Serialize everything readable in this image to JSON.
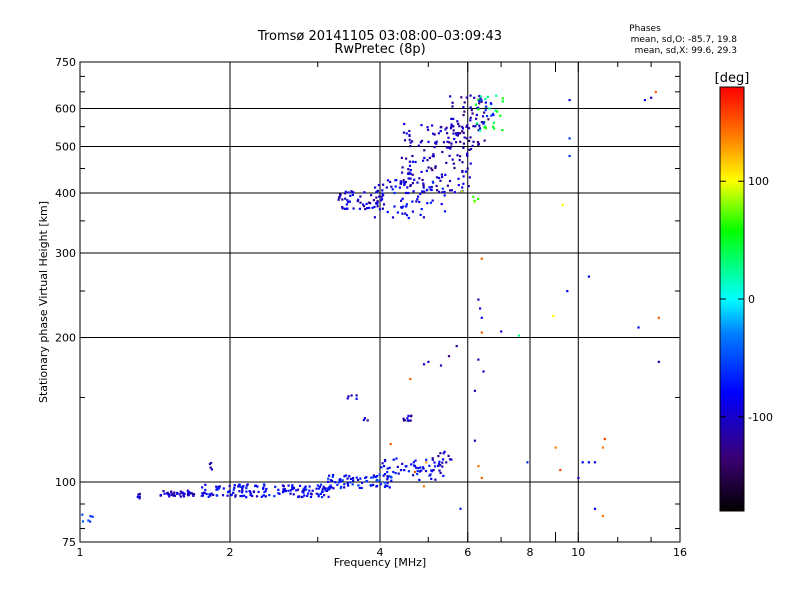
{
  "chart_data": {
    "type": "scatter",
    "title": "Tromsø 20141105 03:08:00–03:09:43",
    "subtitle": "RwPretec (8p)",
    "stats": {
      "header": "Phases",
      "line1": "mean, sd,O: -85.7, 19.8",
      "line2": "mean, sd,X:  99.6, 29.3"
    },
    "xlabel": "Frequency [MHz]",
    "ylabel": "Stationary phase Virtual Height [km]",
    "x_scale": "log",
    "y_scale": "log",
    "xlim": [
      1,
      16
    ],
    "ylim": [
      75,
      750
    ],
    "x_ticks": [
      1,
      2,
      4,
      6,
      8,
      9,
      10,
      16
    ],
    "x_tick_labels": [
      "1",
      "2",
      "4",
      "6",
      "8",
      "",
      "10",
      "16"
    ],
    "x_minor_ticks": [
      3,
      5,
      7,
      12,
      14
    ],
    "x_grid": [
      2,
      4,
      6,
      8,
      10
    ],
    "y_ticks": [
      75,
      100,
      200,
      300,
      400,
      500,
      600,
      750
    ],
    "y_tick_labels": [
      "75",
      "100",
      "200",
      "300",
      "400",
      "500",
      "600",
      "750"
    ],
    "y_grid": [
      100,
      200,
      300,
      400,
      500,
      600
    ],
    "grid": true,
    "colorbar": {
      "label": "[deg]",
      "range": [
        -180,
        180
      ],
      "ticks": [
        100,
        0,
        -100
      ],
      "tick_labels": [
        "100",
        "0",
        "-100"
      ],
      "colors": [
        "#ff0000",
        "#ff8000",
        "#ffff00",
        "#00ff00",
        "#00ffff",
        "#0080ff",
        "#0000ff",
        "#3a0070",
        "#000000"
      ]
    },
    "clusters": [
      {
        "type": "band",
        "x": [
          1.0,
          1.06
        ],
        "y": [
          82,
          86
        ],
        "phase": -60,
        "n": 6
      },
      {
        "type": "band",
        "x": [
          1.3,
          1.32
        ],
        "y": [
          92,
          95
        ],
        "phase": -100,
        "n": 5
      },
      {
        "type": "band",
        "x": [
          1.45,
          1.7
        ],
        "y": [
          93,
          96
        ],
        "phase": -105,
        "n": 40
      },
      {
        "type": "band",
        "x": [
          1.75,
          3.2
        ],
        "y": [
          93,
          99
        ],
        "phase": -85,
        "n": 160
      },
      {
        "type": "band",
        "x": [
          1.82,
          1.84
        ],
        "y": [
          106,
          112
        ],
        "phase": -110,
        "n": 4
      },
      {
        "type": "band",
        "x": [
          3.1,
          4.3
        ],
        "y": [
          97,
          104
        ],
        "phase": -75,
        "n": 70
      },
      {
        "type": "band",
        "x": [
          4.0,
          5.4
        ],
        "y": [
          101,
          112
        ],
        "phase": -85,
        "n": 60
      },
      {
        "type": "band",
        "x": [
          5.1,
          5.6
        ],
        "y": [
          108,
          116
        ],
        "phase": -100,
        "n": 12
      },
      {
        "type": "band",
        "x": [
          3.4,
          3.6
        ],
        "y": [
          148,
          152
        ],
        "phase": -105,
        "n": 5
      },
      {
        "type": "band",
        "x": [
          3.7,
          3.8
        ],
        "y": [
          133,
          137
        ],
        "phase": -110,
        "n": 3
      },
      {
        "type": "band",
        "x": [
          4.45,
          4.65
        ],
        "y": [
          132,
          138
        ],
        "phase": -110,
        "n": 10
      },
      {
        "type": "band",
        "x": [
          3.3,
          4.1
        ],
        "y": [
          370,
          405
        ],
        "phase": -100,
        "n": 60
      },
      {
        "type": "band",
        "x": [
          3.9,
          5.4
        ],
        "y": [
          355,
          430
        ],
        "phase": -85,
        "n": 70
      },
      {
        "type": "band",
        "x": [
          4.4,
          6.1
        ],
        "y": [
          400,
          560
        ],
        "phase": -105,
        "n": 150
      },
      {
        "type": "band",
        "x": [
          5.5,
          6.6
        ],
        "y": [
          500,
          640
        ],
        "phase": -115,
        "n": 60
      },
      {
        "type": "band",
        "x": [
          6.2,
          7.1
        ],
        "y": [
          540,
          640
        ],
        "phase": 40,
        "n": 25
      },
      {
        "type": "band",
        "x": [
          6.3,
          6.8
        ],
        "y": [
          560,
          630
        ],
        "phase": -60,
        "n": 12
      },
      {
        "type": "band",
        "x": [
          5.8,
          6.3
        ],
        "y": [
          380,
          470
        ],
        "phase": 80,
        "n": 5
      }
    ],
    "points": [
      {
        "x": 4.7,
        "y": 105,
        "phase": 150
      },
      {
        "x": 4.9,
        "y": 98,
        "phase": 140
      },
      {
        "x": 6.3,
        "y": 108,
        "phase": 140
      },
      {
        "x": 6.4,
        "y": 102,
        "phase": 150
      },
      {
        "x": 4.95,
        "y": 110,
        "phase": 130
      },
      {
        "x": 6.2,
        "y": 122,
        "phase": -110
      },
      {
        "x": 6.2,
        "y": 155,
        "phase": -110
      },
      {
        "x": 6.3,
        "y": 180,
        "phase": -110
      },
      {
        "x": 5.5,
        "y": 183,
        "phase": -130
      },
      {
        "x": 5.3,
        "y": 175,
        "phase": -110
      },
      {
        "x": 5.7,
        "y": 192,
        "phase": -120
      },
      {
        "x": 6.45,
        "y": 170,
        "phase": -100
      },
      {
        "x": 5.0,
        "y": 178,
        "phase": -110
      },
      {
        "x": 4.9,
        "y": 176,
        "phase": -100
      },
      {
        "x": 4.6,
        "y": 164,
        "phase": 150
      },
      {
        "x": 4.2,
        "y": 120,
        "phase": 150
      },
      {
        "x": 6.4,
        "y": 292,
        "phase": 150
      },
      {
        "x": 6.3,
        "y": 240,
        "phase": -110
      },
      {
        "x": 6.35,
        "y": 230,
        "phase": -100
      },
      {
        "x": 6.4,
        "y": 220,
        "phase": -90
      },
      {
        "x": 6.4,
        "y": 205,
        "phase": 150
      },
      {
        "x": 7.0,
        "y": 206,
        "phase": -100
      },
      {
        "x": 7.6,
        "y": 202,
        "phase": 30
      },
      {
        "x": 8.9,
        "y": 222,
        "phase": 100
      },
      {
        "x": 9.5,
        "y": 250,
        "phase": -80
      },
      {
        "x": 10.5,
        "y": 268,
        "phase": -80
      },
      {
        "x": 9.3,
        "y": 378,
        "phase": 100
      },
      {
        "x": 9.6,
        "y": 478,
        "phase": -60
      },
      {
        "x": 9.6,
        "y": 520,
        "phase": -60
      },
      {
        "x": 9.6,
        "y": 625,
        "phase": -90
      },
      {
        "x": 13.6,
        "y": 625,
        "phase": -90
      },
      {
        "x": 14.3,
        "y": 650,
        "phase": 150
      },
      {
        "x": 14.0,
        "y": 632,
        "phase": -100
      },
      {
        "x": 13.2,
        "y": 210,
        "phase": -80
      },
      {
        "x": 14.5,
        "y": 220,
        "phase": 150
      },
      {
        "x": 14.5,
        "y": 178,
        "phase": -110
      },
      {
        "x": 7.9,
        "y": 110,
        "phase": -60
      },
      {
        "x": 9.0,
        "y": 118,
        "phase": 140
      },
      {
        "x": 9.2,
        "y": 106,
        "phase": 160
      },
      {
        "x": 10.2,
        "y": 110,
        "phase": -80
      },
      {
        "x": 10.5,
        "y": 110,
        "phase": -80
      },
      {
        "x": 10.8,
        "y": 110,
        "phase": -80
      },
      {
        "x": 11.3,
        "y": 123,
        "phase": 160
      },
      {
        "x": 11.2,
        "y": 118,
        "phase": 140
      },
      {
        "x": 10.0,
        "y": 102,
        "phase": -100
      },
      {
        "x": 10.8,
        "y": 88,
        "phase": -80
      },
      {
        "x": 11.2,
        "y": 85,
        "phase": 140
      },
      {
        "x": 5.8,
        "y": 88,
        "phase": -70
      }
    ]
  }
}
